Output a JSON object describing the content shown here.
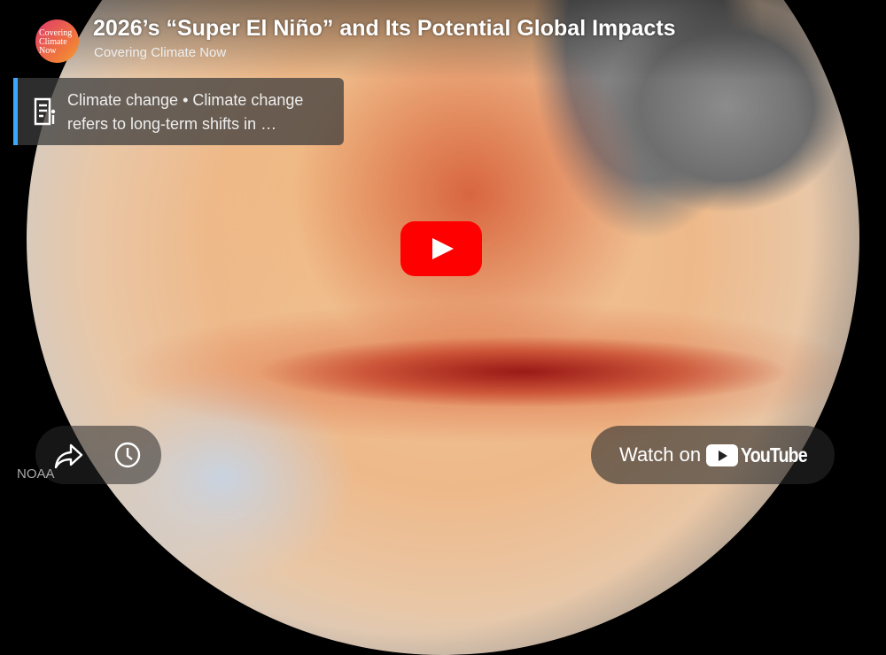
{
  "video": {
    "title": "2026’s “Super El Niño” and Its Potential Global Impacts",
    "channel": "Covering Climate Now",
    "avatar_text": "Covering Climate Now",
    "watermark": "NOAA"
  },
  "info_card": {
    "text": "Climate change • Climate change refers to long-term shifts in …",
    "icon": "info-document-icon",
    "accent": "#3ea6ff"
  },
  "controls": {
    "play_icon": "play-icon",
    "share_icon": "share-icon",
    "watch_later_icon": "clock-icon"
  },
  "watch_on": {
    "label": "Watch on",
    "brand": "YouTube"
  },
  "colors": {
    "play_button": "#ff0000"
  }
}
